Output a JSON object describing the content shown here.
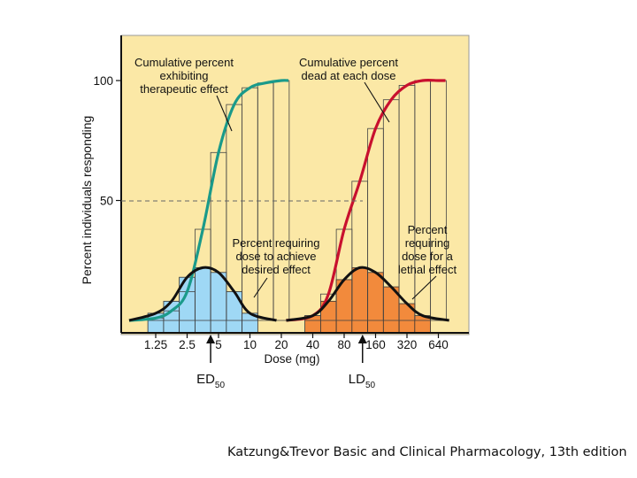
{
  "caption": "Katzung&Trevor Basic and Clinical Pharmacology, 13th edition",
  "colors": {
    "panel": "#fbe8a6",
    "therapeutic_curve": "#1a9a8a",
    "lethal_curve": "#c8102e",
    "therapeutic_bars": "#9fd8f5",
    "lethal_bars": "#f28a3c",
    "distribution_curve": "#111111"
  },
  "chart_data": {
    "type": "bar",
    "xlabel": "Dose (mg)",
    "ylabel": "Percent individuals responding",
    "x_ticks": [
      "1.25",
      "2.5",
      "5",
      "10",
      "20",
      "40",
      "80",
      "160",
      "320",
      "640"
    ],
    "y_ticks": [
      50,
      100
    ],
    "ylim": [
      0,
      100
    ],
    "grid": false,
    "reference_line": 50,
    "markers": [
      {
        "label": "ED",
        "subscript": "50",
        "dose": 4.2
      },
      {
        "label": "LD",
        "subscript": "50",
        "dose": 120
      }
    ],
    "series": [
      {
        "label": "Cumulative percent exhibiting therapeutic effect",
        "kind": "cumulative",
        "doses": [
          1.25,
          1.77,
          2.5,
          3.54,
          5,
          7.07,
          10,
          14.1,
          20
        ],
        "values": [
          1,
          4,
          12,
          38,
          70,
          90,
          97,
          99,
          100
        ]
      },
      {
        "label": "Percent requiring dose to achieve desired effect",
        "kind": "distribution",
        "doses": [
          1.25,
          1.77,
          2.5,
          3.54,
          5,
          7.07,
          10
        ],
        "values": [
          3,
          8,
          18,
          22,
          20,
          12,
          3
        ]
      },
      {
        "label": "Cumulative percent dead at each dose",
        "kind": "cumulative",
        "doses": [
          40,
          56.6,
          80,
          113,
          160,
          226,
          320,
          452,
          640
        ],
        "values": [
          2,
          11,
          38,
          58,
          80,
          92,
          98,
          100,
          100
        ]
      },
      {
        "label": "Percent requiring dose for a lethal effect",
        "kind": "distribution",
        "doses": [
          40,
          56.6,
          80,
          113,
          160,
          226,
          320,
          452
        ],
        "values": [
          2,
          8,
          17,
          22,
          20,
          14,
          7,
          2
        ]
      }
    ]
  }
}
